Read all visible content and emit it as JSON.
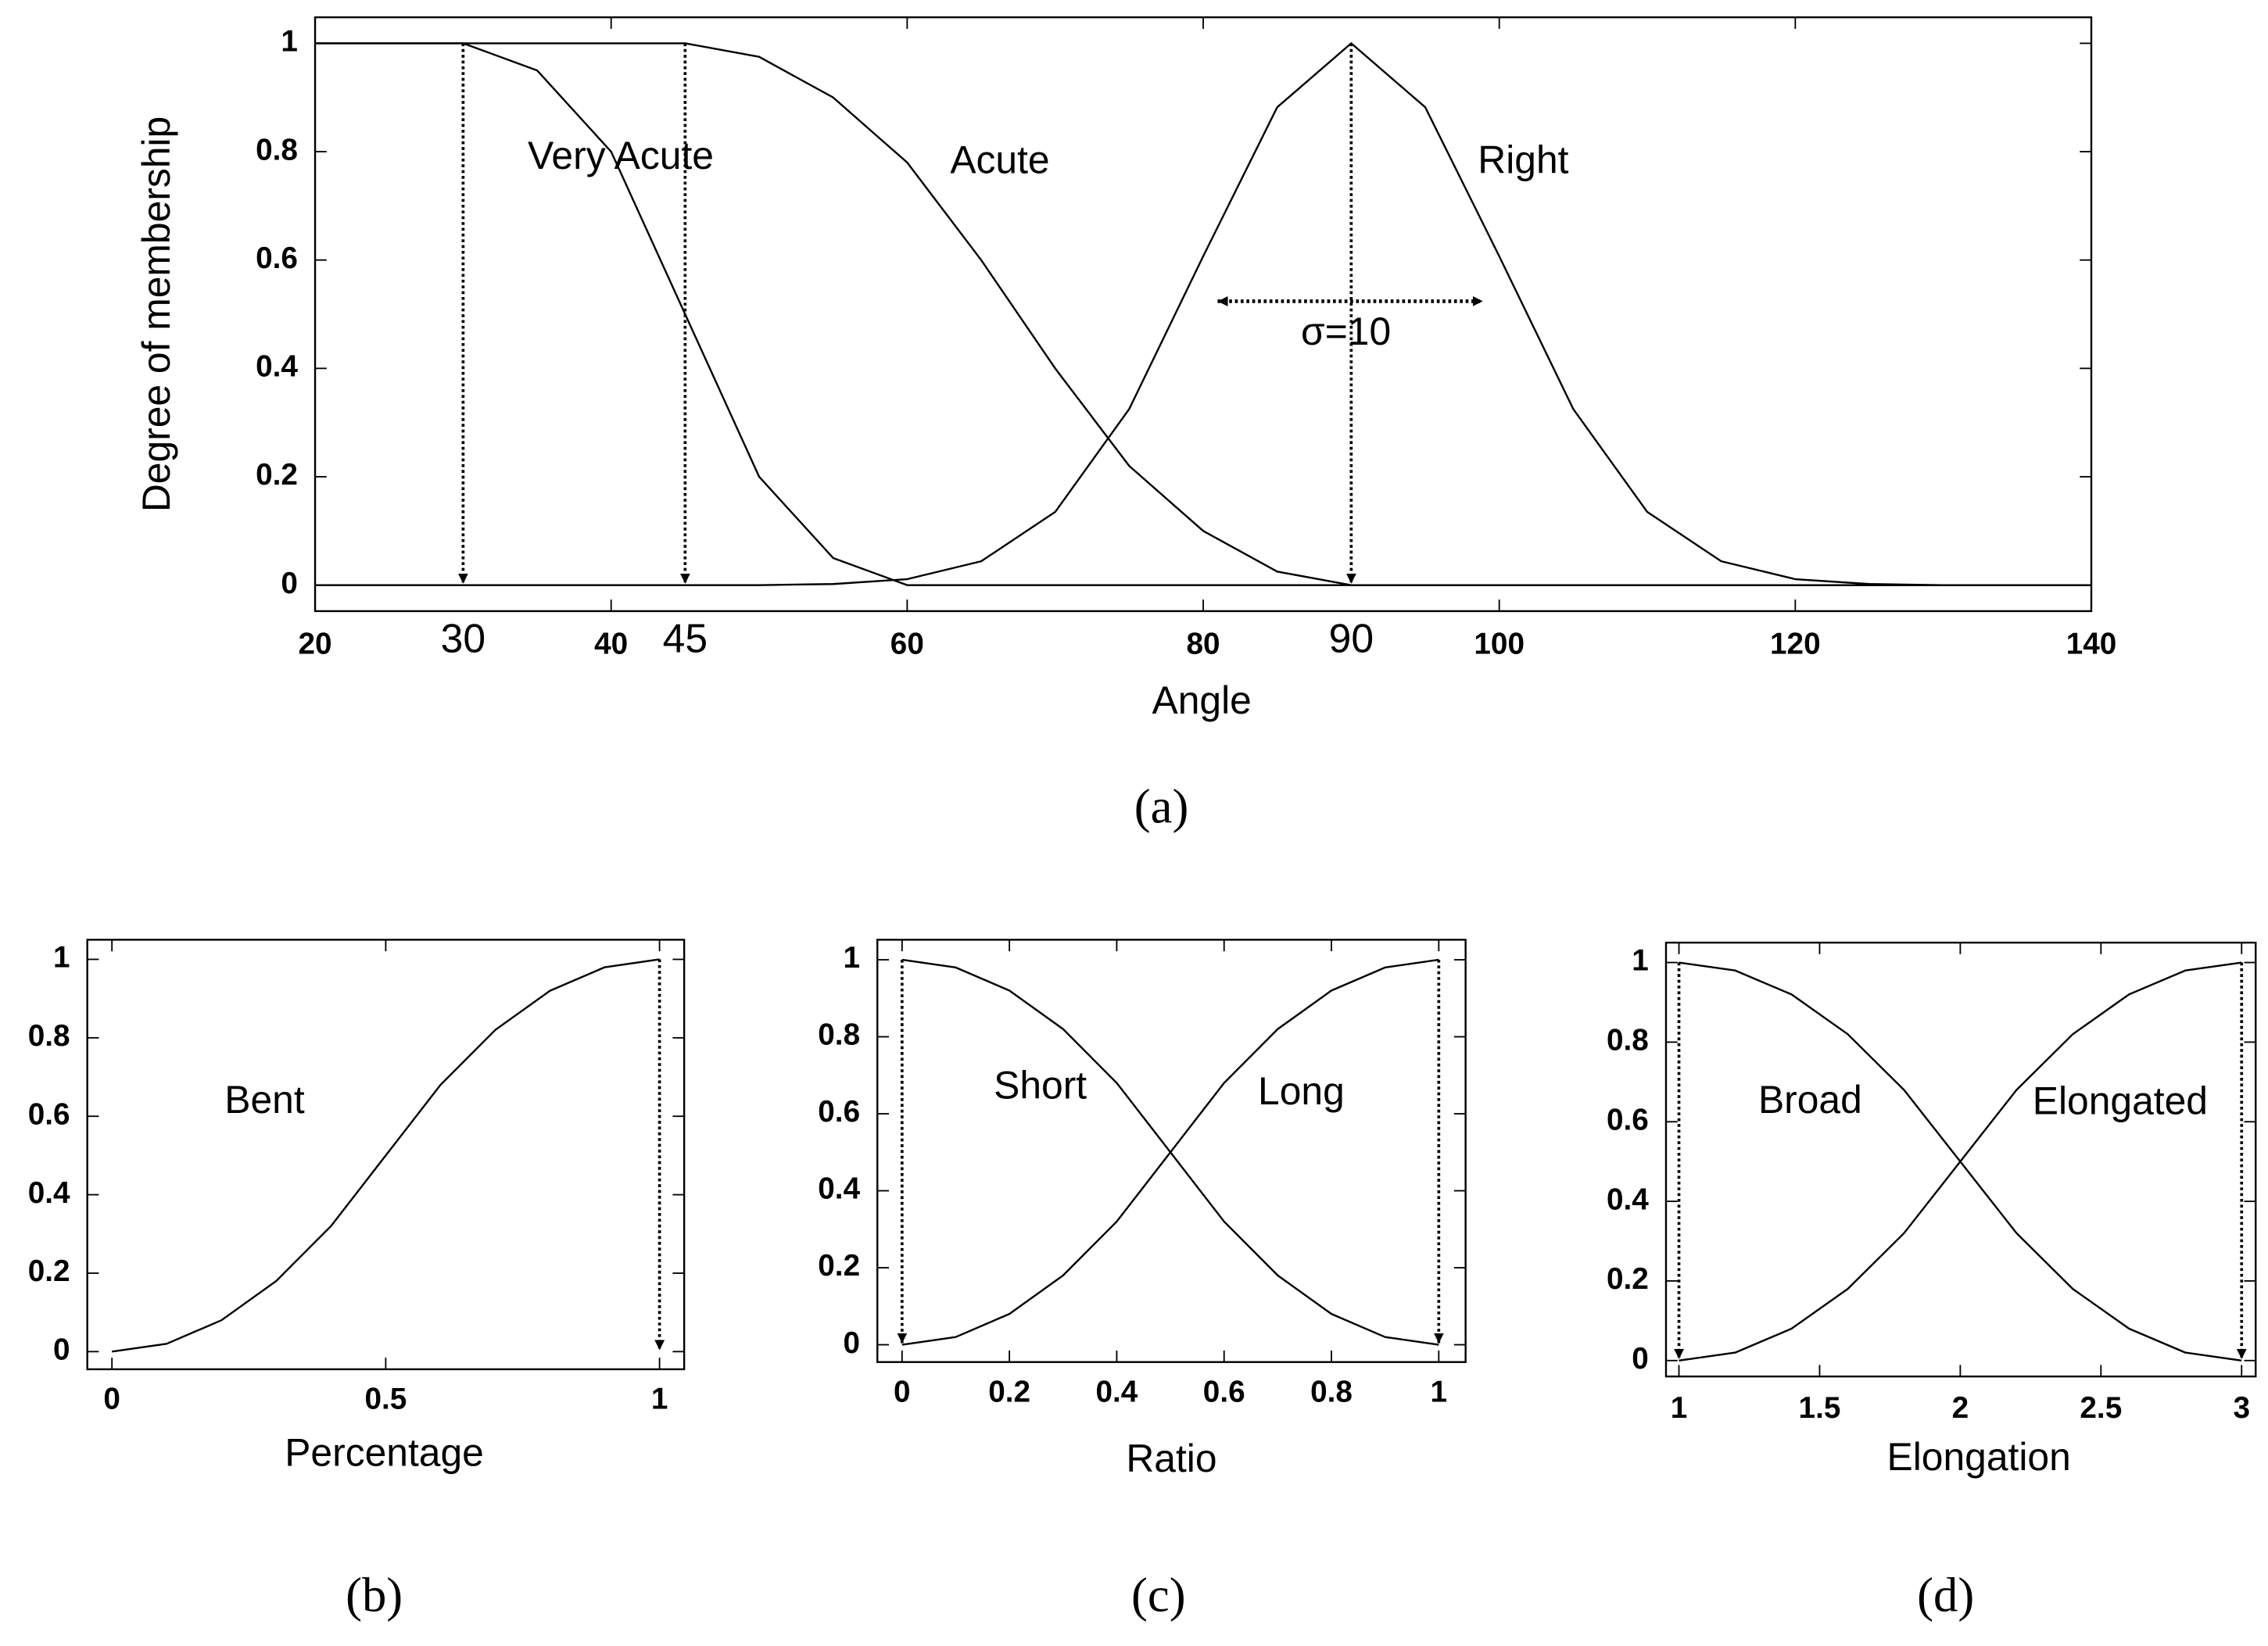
{
  "chart_data": [
    {
      "type": "line",
      "xlabel": "Angle",
      "ylabel": "Degree of membership",
      "caption": "(a)",
      "x": [
        20,
        25,
        30,
        35,
        40,
        45,
        50,
        55,
        60,
        65,
        70,
        75,
        80,
        85,
        90,
        95,
        100,
        105,
        110,
        115,
        120,
        125,
        130,
        135,
        140
      ],
      "series": [
        {
          "name": "Very Acute",
          "color": "#000000",
          "values": [
            1,
            1,
            1,
            0.95,
            0.8,
            0.5,
            0.2,
            0.05,
            0,
            0,
            0,
            0,
            0,
            0,
            0,
            0,
            0,
            0,
            0,
            0,
            0,
            0,
            0,
            0,
            0
          ]
        },
        {
          "name": "Acute",
          "color": "#000000",
          "values": [
            1,
            1,
            1,
            1,
            1,
            1,
            0.975,
            0.9,
            0.78,
            0.6,
            0.4,
            0.22,
            0.1,
            0.025,
            0,
            0,
            0,
            0,
            0,
            0,
            0,
            0,
            0,
            0,
            0
          ]
        },
        {
          "name": "Right",
          "color": "#000000",
          "values": [
            0,
            0,
            0,
            0,
            0,
            0,
            0,
            0.002,
            0.011,
            0.044,
            0.135,
            0.325,
            0.607,
            0.882,
            1,
            0.882,
            0.607,
            0.325,
            0.135,
            0.044,
            0.011,
            0.002,
            0,
            0,
            0
          ]
        }
      ],
      "arrows": [
        30,
        45,
        90
      ],
      "show_arrow_labels": true,
      "annotation": "σ=10",
      "xlim": [
        20,
        140
      ],
      "xticks": [
        20,
        40,
        60,
        80,
        100,
        120,
        140
      ],
      "ylim": [
        -0.048,
        1.048
      ],
      "yticks": [
        0,
        0.2,
        0.4,
        0.6,
        0.8,
        1
      ]
    },
    {
      "type": "line",
      "xlabel": "Percentage",
      "caption": "(b)",
      "x": [
        0,
        0.1,
        0.2,
        0.3,
        0.4,
        0.5,
        0.6,
        0.7,
        0.8,
        0.9,
        1
      ],
      "series": [
        {
          "name": "Bent",
          "color": "#000000",
          "values": [
            0,
            0.02,
            0.08,
            0.18,
            0.32,
            0.5,
            0.68,
            0.82,
            0.92,
            0.98,
            1
          ]
        }
      ],
      "arrows": [
        1
      ],
      "show_arrow_labels": false,
      "xlim": [
        -0.045,
        1.045
      ],
      "xticks": [
        0,
        0.5,
        1
      ],
      "ylim": [
        -0.045,
        1.05
      ],
      "yticks": [
        0,
        0.2,
        0.4,
        0.6,
        0.8,
        1
      ]
    },
    {
      "type": "line",
      "xlabel": "Ratio",
      "caption": "(c)",
      "x": [
        0,
        0.1,
        0.2,
        0.3,
        0.4,
        0.5,
        0.6,
        0.7,
        0.8,
        0.9,
        1
      ],
      "series": [
        {
          "name": "Short",
          "color": "#000000",
          "values": [
            1,
            0.98,
            0.92,
            0.82,
            0.68,
            0.5,
            0.32,
            0.18,
            0.08,
            0.02,
            0
          ]
        },
        {
          "name": "Long",
          "color": "#000000",
          "values": [
            0,
            0.02,
            0.08,
            0.18,
            0.32,
            0.5,
            0.68,
            0.82,
            0.92,
            0.98,
            1
          ]
        }
      ],
      "arrows": [
        0,
        1
      ],
      "show_arrow_labels": false,
      "xlim": [
        -0.046,
        1.05
      ],
      "xticks": [
        0,
        0.2,
        0.4,
        0.6,
        0.8,
        1
      ],
      "ylim": [
        -0.045,
        1.052
      ],
      "yticks": [
        0,
        0.2,
        0.4,
        0.6,
        0.8,
        1
      ]
    },
    {
      "type": "line",
      "xlabel": "Elongation",
      "caption": "(d)",
      "x": [
        1,
        1.2,
        1.4,
        1.6,
        1.8,
        2,
        2.2,
        2.4,
        2.6,
        2.8,
        3
      ],
      "series": [
        {
          "name": "Broad",
          "color": "#000000",
          "values": [
            1,
            0.98,
            0.92,
            0.82,
            0.68,
            0.5,
            0.32,
            0.18,
            0.08,
            0.02,
            0
          ]
        },
        {
          "name": "Elongated",
          "color": "#000000",
          "values": [
            0,
            0.02,
            0.08,
            0.18,
            0.32,
            0.5,
            0.68,
            0.82,
            0.92,
            0.98,
            1
          ]
        }
      ],
      "arrows": [
        1,
        3
      ],
      "show_arrow_labels": false,
      "xlim": [
        0.954,
        3.05
      ],
      "xticks": [
        1,
        1.5,
        2,
        2.5,
        3
      ],
      "ylim": [
        -0.04,
        1.05
      ],
      "yticks": [
        0,
        0.2,
        0.4,
        0.6,
        0.8,
        1
      ]
    }
  ]
}
